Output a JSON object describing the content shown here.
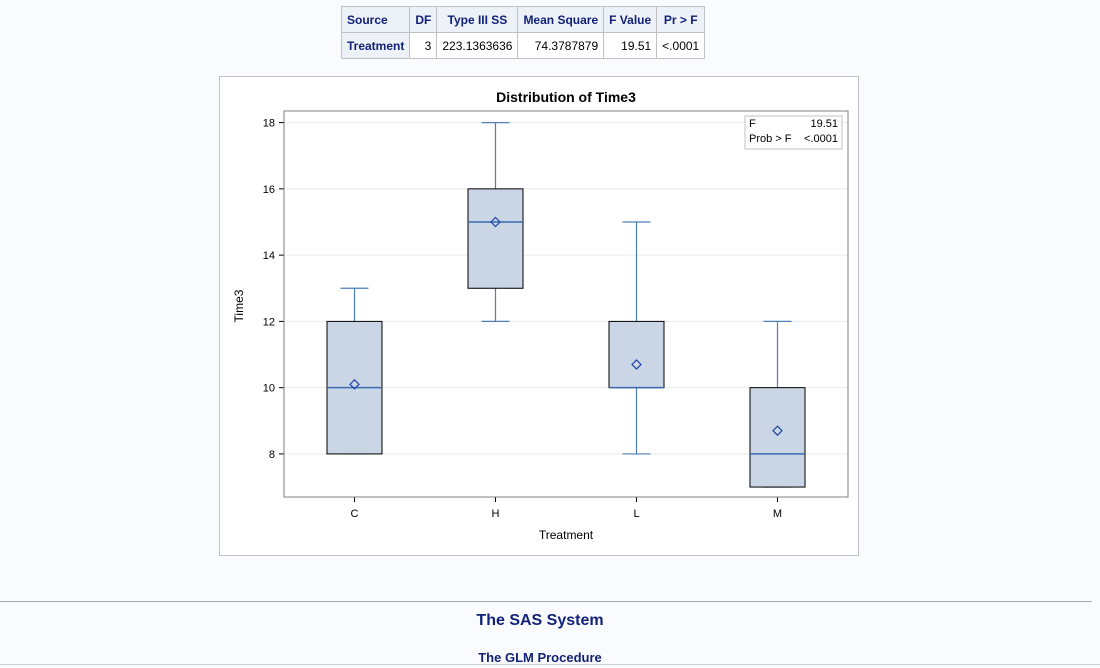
{
  "anova_table": {
    "headers": [
      "Source",
      "DF",
      "Type III SS",
      "Mean Square",
      "F Value",
      "Pr > F"
    ],
    "rows": [
      {
        "source": "Treatment",
        "df": "3",
        "ss": "223.1363636",
        "ms": "74.3787879",
        "f": "19.51",
        "p": "<.0001"
      }
    ]
  },
  "chart_data": {
    "type": "boxplot",
    "title": "Distribution of Time3",
    "xlabel": "Treatment",
    "ylabel": "Time3",
    "ylim": [
      6.7,
      18.35
    ],
    "yticks": [
      8,
      10,
      12,
      14,
      16,
      18
    ],
    "grid": true,
    "categories": [
      "C",
      "H",
      "L",
      "M"
    ],
    "boxes": [
      {
        "category": "C",
        "min": 8,
        "q1": 8,
        "median": 10,
        "q3": 12,
        "max": 13,
        "mean": 10.1
      },
      {
        "category": "H",
        "min": 12,
        "q1": 13,
        "median": 15,
        "q3": 16,
        "max": 18,
        "mean": 15.0
      },
      {
        "category": "L",
        "min": 8,
        "q1": 10,
        "median": 10,
        "q3": 12,
        "max": 15,
        "mean": 10.7
      },
      {
        "category": "M",
        "min": 7,
        "q1": 7,
        "median": 8,
        "q3": 10,
        "max": 12,
        "mean": 8.7
      }
    ],
    "inset": {
      "position": "top-right",
      "rows": [
        {
          "label": "F",
          "value": "19.51"
        },
        {
          "label": "Prob > F",
          "value": "<.0001"
        }
      ]
    },
    "colors": {
      "box_fill": "#cad5e5",
      "whisker": "#4f7db5",
      "median": "#3b6cb0",
      "mean_marker": "#2244aa",
      "grid": "#e9e9e9"
    }
  },
  "footer": {
    "system_title": "The SAS System",
    "procedure_title": "The GLM Procedure"
  }
}
